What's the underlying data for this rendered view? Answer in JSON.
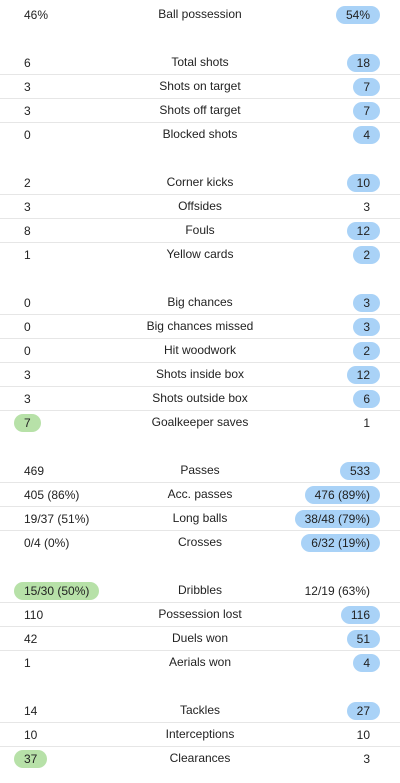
{
  "colors": {
    "home_highlight": "#b7e1a8",
    "away_highlight": "#a9d2f7",
    "divider": "#e6e6e6",
    "text": "#222222"
  },
  "groups": [
    {
      "rows": [
        {
          "name": "ball-possession",
          "label": "Ball possession",
          "home": "46%",
          "away": "54%",
          "highlight": "away"
        }
      ]
    },
    {
      "rows": [
        {
          "name": "total-shots",
          "label": "Total shots",
          "home": "6",
          "away": "18",
          "highlight": "away"
        },
        {
          "name": "shots-on-target",
          "label": "Shots on target",
          "home": "3",
          "away": "7",
          "highlight": "away"
        },
        {
          "name": "shots-off-target",
          "label": "Shots off target",
          "home": "3",
          "away": "7",
          "highlight": "away"
        },
        {
          "name": "blocked-shots",
          "label": "Blocked shots",
          "home": "0",
          "away": "4",
          "highlight": "away"
        }
      ]
    },
    {
      "rows": [
        {
          "name": "corner-kicks",
          "label": "Corner kicks",
          "home": "2",
          "away": "10",
          "highlight": "away"
        },
        {
          "name": "offsides",
          "label": "Offsides",
          "home": "3",
          "away": "3",
          "highlight": "none"
        },
        {
          "name": "fouls",
          "label": "Fouls",
          "home": "8",
          "away": "12",
          "highlight": "away"
        },
        {
          "name": "yellow-cards",
          "label": "Yellow cards",
          "home": "1",
          "away": "2",
          "highlight": "away"
        }
      ]
    },
    {
      "rows": [
        {
          "name": "big-chances",
          "label": "Big chances",
          "home": "0",
          "away": "3",
          "highlight": "away"
        },
        {
          "name": "big-chances-missed",
          "label": "Big chances missed",
          "home": "0",
          "away": "3",
          "highlight": "away"
        },
        {
          "name": "hit-woodwork",
          "label": "Hit woodwork",
          "home": "0",
          "away": "2",
          "highlight": "away"
        },
        {
          "name": "shots-inside-box",
          "label": "Shots inside box",
          "home": "3",
          "away": "12",
          "highlight": "away"
        },
        {
          "name": "shots-outside-box",
          "label": "Shots outside box",
          "home": "3",
          "away": "6",
          "highlight": "away"
        },
        {
          "name": "goalkeeper-saves",
          "label": "Goalkeeper saves",
          "home": "7",
          "away": "1",
          "highlight": "home"
        }
      ]
    },
    {
      "rows": [
        {
          "name": "passes",
          "label": "Passes",
          "home": "469",
          "away": "533",
          "highlight": "away"
        },
        {
          "name": "acc-passes",
          "label": "Acc. passes",
          "home": "405 (86%)",
          "away": "476 (89%)",
          "highlight": "away"
        },
        {
          "name": "long-balls",
          "label": "Long balls",
          "home": "19/37 (51%)",
          "away": "38/48 (79%)",
          "highlight": "away"
        },
        {
          "name": "crosses",
          "label": "Crosses",
          "home": "0/4 (0%)",
          "away": "6/32 (19%)",
          "highlight": "away"
        }
      ]
    },
    {
      "rows": [
        {
          "name": "dribbles",
          "label": "Dribbles",
          "home": "15/30 (50%)",
          "away": "12/19 (63%)",
          "highlight": "home"
        },
        {
          "name": "possession-lost",
          "label": "Possession lost",
          "home": "110",
          "away": "116",
          "highlight": "away"
        },
        {
          "name": "duels-won",
          "label": "Duels won",
          "home": "42",
          "away": "51",
          "highlight": "away"
        },
        {
          "name": "aerials-won",
          "label": "Aerials won",
          "home": "1",
          "away": "4",
          "highlight": "away"
        }
      ]
    },
    {
      "rows": [
        {
          "name": "tackles",
          "label": "Tackles",
          "home": "14",
          "away": "27",
          "highlight": "away"
        },
        {
          "name": "interceptions",
          "label": "Interceptions",
          "home": "10",
          "away": "10",
          "highlight": "none"
        },
        {
          "name": "clearances",
          "label": "Clearances",
          "home": "37",
          "away": "3",
          "highlight": "home"
        }
      ]
    }
  ]
}
